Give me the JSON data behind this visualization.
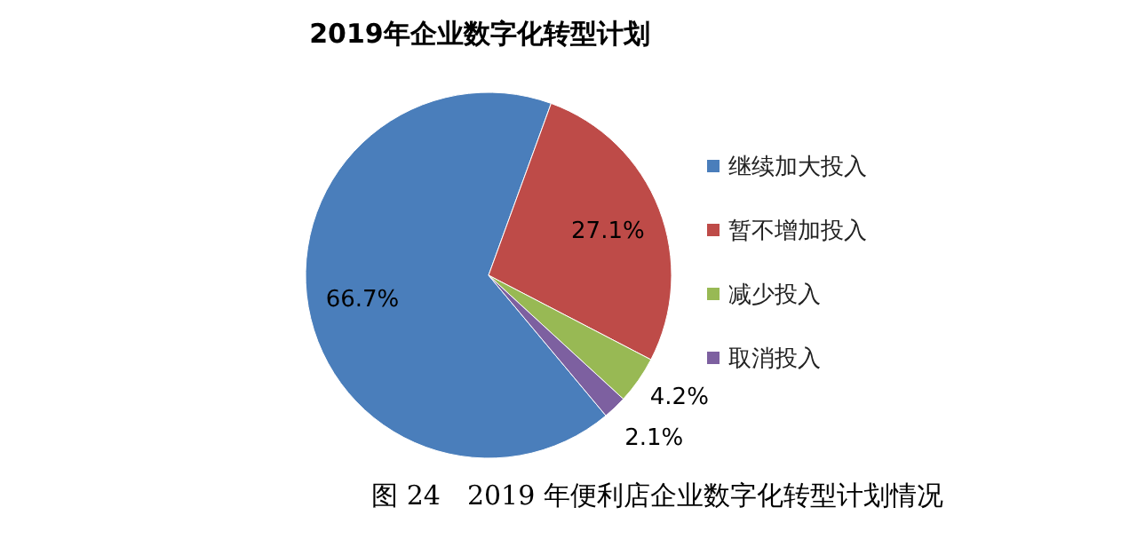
{
  "chart_data": {
    "type": "pie",
    "title": "2019年企业数字化转型计划",
    "categories": [
      "继续加大投入",
      "暂不增加投入",
      "减少投入",
      "取消投入"
    ],
    "values": [
      66.7,
      27.1,
      4.2,
      2.1
    ],
    "colors": [
      "#4a7ebb",
      "#be4b48",
      "#98b954",
      "#7d60a0"
    ],
    "value_labels": [
      "66.7%",
      "27.1%",
      "4.2%",
      "2.1%"
    ],
    "legend": "right",
    "annotations": [
      "图 24　2019 年便利店企业数字化转型计划情况"
    ]
  }
}
